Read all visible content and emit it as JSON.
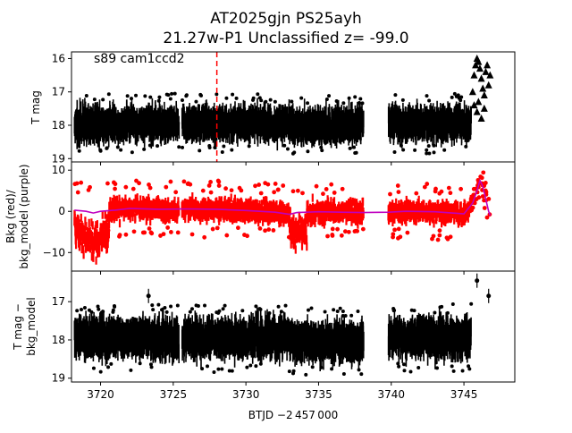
{
  "title_line1": "AT2025gjn  PS25ayh",
  "title_line2": "21.27w-P1 Unclassified z= -99.0",
  "annotation": "s89 cam1ccd2",
  "xlabel": "BTJD −2 457 000",
  "x_ticks": [
    "3720",
    "3725",
    "3730",
    "3735",
    "3740",
    "3745"
  ],
  "colors": {
    "data": "#000000",
    "bkg": "#ff0000",
    "bkg_model": "#bf00bf",
    "marker": "#ff0000"
  },
  "chart_data": [
    {
      "type": "scatter",
      "panel": "top",
      "ylabel": "T mag",
      "y_inverted": true,
      "xlim": [
        3718,
        3748.5
      ],
      "ylim": [
        19.1,
        15.8
      ],
      "y_ticks": [
        "16",
        "17",
        "18",
        "19"
      ],
      "vertical_marker_x": 3728.0,
      "segments": [
        {
          "x_range": [
            3718.2,
            3725.4
          ],
          "y_center": 17.95,
          "y_spread": 0.55
        },
        {
          "x_range": [
            3725.6,
            3733.2
          ],
          "y_center": 17.95,
          "y_spread": 0.55
        },
        {
          "x_range": [
            3733.2,
            3738.1
          ],
          "y_center": 18.0,
          "y_spread": 0.55
        },
        {
          "x_range": [
            3739.8,
            3745.5
          ],
          "y_center": 17.95,
          "y_spread": 0.55
        }
      ],
      "flare_points": [
        {
          "x": 3745.6,
          "y": 17.0
        },
        {
          "x": 3745.7,
          "y": 16.5
        },
        {
          "x": 3745.8,
          "y": 16.2
        },
        {
          "x": 3745.9,
          "y": 16.0
        },
        {
          "x": 3746.0,
          "y": 16.1
        },
        {
          "x": 3746.1,
          "y": 16.3
        },
        {
          "x": 3746.2,
          "y": 16.6
        },
        {
          "x": 3746.3,
          "y": 16.9
        },
        {
          "x": 3746.4,
          "y": 17.1
        },
        {
          "x": 3746.5,
          "y": 16.4
        },
        {
          "x": 3746.6,
          "y": 16.2
        },
        {
          "x": 3746.7,
          "y": 16.8
        },
        {
          "x": 3746.8,
          "y": 16.5
        },
        {
          "x": 3745.9,
          "y": 17.6
        },
        {
          "x": 3746.2,
          "y": 17.8
        },
        {
          "x": 3746.0,
          "y": 17.3
        },
        {
          "x": 3746.4,
          "y": 17.5
        },
        {
          "x": 3745.7,
          "y": 17.4
        }
      ]
    },
    {
      "type": "scatter",
      "panel": "middle",
      "ylabel_line1": "Bkg (red)/",
      "ylabel_line2": "bkg_model (purple)",
      "xlim": [
        3718,
        3748.5
      ],
      "ylim": [
        -14.5,
        12
      ],
      "y_ticks": [
        "10",
        "0",
        "−10"
      ],
      "bkg_model": [
        [
          3718.2,
          0.3
        ],
        [
          3719.0,
          0.0
        ],
        [
          3719.5,
          -0.4
        ],
        [
          3720.0,
          0.0
        ],
        [
          3721.0,
          0.3
        ],
        [
          3722.0,
          0.7
        ],
        [
          3724.0,
          0.5
        ],
        [
          3726.0,
          0.6
        ],
        [
          3728.0,
          0.5
        ],
        [
          3730.0,
          0.2
        ],
        [
          3732.0,
          -0.2
        ],
        [
          3733.0,
          -0.7
        ],
        [
          3733.5,
          -0.3
        ],
        [
          3735.0,
          -0.1
        ],
        [
          3738.0,
          -0.3
        ],
        [
          3739.8,
          -0.2
        ],
        [
          3741.0,
          0.0
        ],
        [
          3743.0,
          -0.1
        ],
        [
          3745.0,
          -0.6
        ],
        [
          3745.6,
          2.0
        ],
        [
          3745.9,
          5.0
        ],
        [
          3746.1,
          7.5
        ],
        [
          3746.3,
          6.0
        ],
        [
          3746.5,
          3.0
        ],
        [
          3746.7,
          0.0
        ],
        [
          3746.8,
          -1.0
        ]
      ]
    },
    {
      "type": "scatter",
      "panel": "bottom",
      "ylabel_line1": "T mag −",
      "ylabel_line2": "bkg_model",
      "y_inverted": true,
      "xlim": [
        3718,
        3748.5
      ],
      "ylim": [
        19.1,
        16.2
      ],
      "y_ticks": [
        "17",
        "18",
        "19"
      ],
      "segments": [
        {
          "x_range": [
            3718.2,
            3725.4
          ],
          "y_center": 17.95,
          "y_spread": 0.55
        },
        {
          "x_range": [
            3725.6,
            3733.2
          ],
          "y_center": 17.95,
          "y_spread": 0.55
        },
        {
          "x_range": [
            3733.2,
            3738.1
          ],
          "y_center": 18.05,
          "y_spread": 0.55
        },
        {
          "x_range": [
            3739.8,
            3745.5
          ],
          "y_center": 17.95,
          "y_spread": 0.55
        }
      ],
      "outliers": [
        {
          "x": 3723.3,
          "y": 16.85
        },
        {
          "x": 3745.9,
          "y": 16.45
        },
        {
          "x": 3746.7,
          "y": 16.85
        }
      ]
    }
  ]
}
